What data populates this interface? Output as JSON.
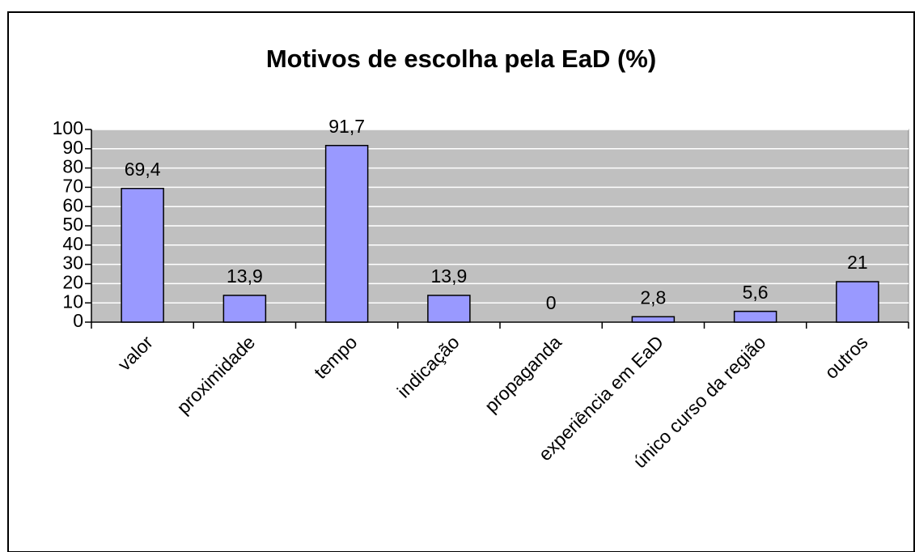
{
  "chart_data": {
    "type": "bar",
    "title": "Motivos de escolha pela EaD (%)",
    "categories": [
      "valor",
      "proximidade",
      "tempo",
      "indicação",
      "propaganda",
      "experiência em EaD",
      "único curso da região",
      "outros"
    ],
    "values": [
      69.4,
      13.9,
      91.7,
      13.9,
      0,
      2.8,
      5.6,
      21
    ],
    "value_labels": [
      "69,4",
      "13,9",
      "91,7",
      "13,9",
      "0",
      "2,8",
      "5,6",
      "21"
    ],
    "color": "#9999ff",
    "ylim": [
      0,
      100
    ],
    "yticks": [
      0,
      10,
      20,
      30,
      40,
      50,
      60,
      70,
      80,
      90,
      100
    ],
    "grid": true
  }
}
